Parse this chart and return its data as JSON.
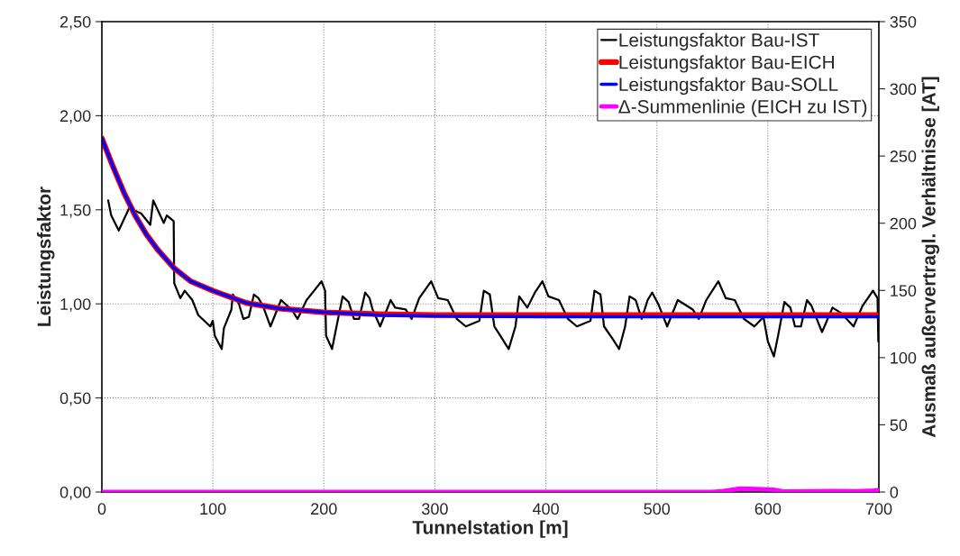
{
  "chart_data": {
    "type": "line",
    "xlabel": "Tunnelstation [m]",
    "ylabel": "Leistungsfaktor",
    "y2label": "Ausmaß außervertragl. Verhältnisse [AT]",
    "xlim": [
      0,
      700
    ],
    "xticks": [
      0,
      100,
      200,
      300,
      400,
      500,
      600,
      700
    ],
    "ylim": [
      0,
      2.5
    ],
    "yticks": [
      {
        "value": 0,
        "label": "0,00"
      },
      {
        "value": 0.5,
        "label": "0,50"
      },
      {
        "value": 1,
        "label": "1,00"
      },
      {
        "value": 1.5,
        "label": "1,50"
      },
      {
        "value": 2,
        "label": "2,00"
      },
      {
        "value": 2.5,
        "label": "2,50"
      }
    ],
    "y2lim": [
      0,
      350
    ],
    "y2ticks": [
      0,
      50,
      100,
      150,
      200,
      250,
      300,
      350
    ],
    "grid": true,
    "legend": "top right",
    "marker": "none",
    "line_style": "solid",
    "series": [
      {
        "name": "Leistungsfaktor Bau-IST",
        "color": "#000000",
        "x": [
          5.7,
          8.4,
          15.2,
          19.2,
          24.6,
          35.5,
          43.6,
          46.3,
          55.8,
          58.5,
          64.7,
          65.2,
          70.7,
          74.7,
          81.5,
          86.9,
          97.7,
          99.9,
          101.8,
          108,
          109.9,
          116.7,
          118,
          123.5,
          127.5,
          132.4,
          137,
          141,
          145.1,
          151.9,
          161.4,
          170.9,
          176.3,
          184.4,
          191.2,
          197.9,
          201.1,
          202,
          207.4,
          211.4,
          216.9,
          222.3,
          227.1,
          231.7,
          237.2,
          241.2,
          243.9,
          250.7,
          260.2,
          264.2,
          273.7,
          279.1,
          285.9,
          296.7,
          303,
          311.6,
          319.8,
          327.9,
          340.1,
          344.1,
          349.5,
          353.6,
          359,
          366.5,
          372.6,
          376,
          383.3,
          390.1,
          396.9,
          402.3,
          411.8,
          419.9,
          428,
          440.2,
          443.8,
          449.2,
          452.4,
          460.6,
          466,
          471.4,
          475.4,
          480.9,
          486.3,
          491.7,
          495.8,
          501.2,
          509.3,
          518.8,
          532.3,
          537.8,
          544.5,
          555.4,
          562.1,
          570.2,
          578.4,
          587.9,
          596,
          600,
          605.4,
          609.5,
          614.9,
          620.3,
          624.4,
          629.8,
          635.2,
          639.3,
          648.8,
          658.2,
          666.3,
          677.2,
          685.3,
          694.7,
          698.8,
          699.5
        ],
        "values": [
          1.55,
          1.47,
          1.39,
          1.44,
          1.51,
          1.48,
          1.42,
          1.55,
          1.43,
          1.47,
          1.44,
          1.11,
          1.03,
          1.07,
          1.02,
          0.94,
          0.88,
          0.91,
          0.83,
          0.76,
          0.87,
          0.97,
          1.05,
          1.0,
          0.92,
          0.93,
          1.05,
          1.03,
          0.99,
          0.88,
          1.02,
          0.97,
          0.92,
          1.02,
          1.07,
          1.12,
          1.07,
          0.83,
          0.76,
          0.88,
          1.04,
          1.01,
          0.92,
          0.92,
          1.06,
          1.03,
          0.97,
          0.88,
          1.02,
          0.98,
          0.97,
          0.92,
          1.03,
          1.12,
          1.03,
          1.02,
          0.92,
          0.88,
          0.91,
          1.07,
          1.05,
          0.88,
          0.83,
          0.76,
          0.88,
          1.04,
          0.98,
          1.06,
          1.12,
          1.04,
          1.02,
          0.92,
          0.88,
          0.91,
          1.07,
          1.05,
          0.88,
          0.81,
          0.76,
          0.88,
          1.04,
          1.02,
          0.92,
          1.02,
          1.06,
          1.0,
          0.88,
          1.02,
          0.97,
          0.92,
          1.02,
          1.12,
          1.03,
          1.02,
          0.92,
          0.88,
          0.93,
          0.8,
          0.72,
          0.84,
          1.01,
          0.98,
          0.88,
          0.88,
          1.02,
          0.99,
          0.85,
          0.98,
          0.95,
          0.88,
          0.99,
          1.07,
          1.03,
          0.8
        ]
      },
      {
        "name": "Leistungsfaktor Bau-EICH",
        "color": "#ff0000",
        "x": [
          0,
          10,
          20,
          30,
          40,
          50,
          65,
          80,
          100,
          130,
          160,
          200,
          250,
          300,
          400,
          500,
          700
        ],
        "values": [
          1.88,
          1.73,
          1.59,
          1.47,
          1.37,
          1.29,
          1.19,
          1.12,
          1.07,
          1.005,
          0.975,
          0.955,
          0.945,
          0.94,
          0.94,
          0.94,
          0.94
        ]
      },
      {
        "name": "Leistungsfaktor Bau-SOLL",
        "color": "#0000ff",
        "x": [
          0,
          10,
          20,
          30,
          40,
          50,
          65,
          80,
          100,
          130,
          160,
          200,
          250,
          300,
          400,
          500,
          700
        ],
        "values": [
          1.88,
          1.73,
          1.59,
          1.47,
          1.37,
          1.29,
          1.19,
          1.12,
          1.07,
          1.005,
          0.975,
          0.955,
          0.94,
          0.935,
          0.932,
          0.932,
          0.932
        ]
      },
      {
        "name": "Δ-Summenlinie (EICH zu IST)",
        "color": "#ff00ff",
        "axis": "y2",
        "x": [
          0,
          550,
          560,
          575,
          590,
          605,
          615,
          640,
          660,
          680,
          695,
          700
        ],
        "values": [
          0,
          0,
          0.8,
          2.5,
          2.3,
          1.8,
          0.3,
          0.5,
          0.8,
          0.5,
          1,
          1.5
        ]
      }
    ]
  }
}
